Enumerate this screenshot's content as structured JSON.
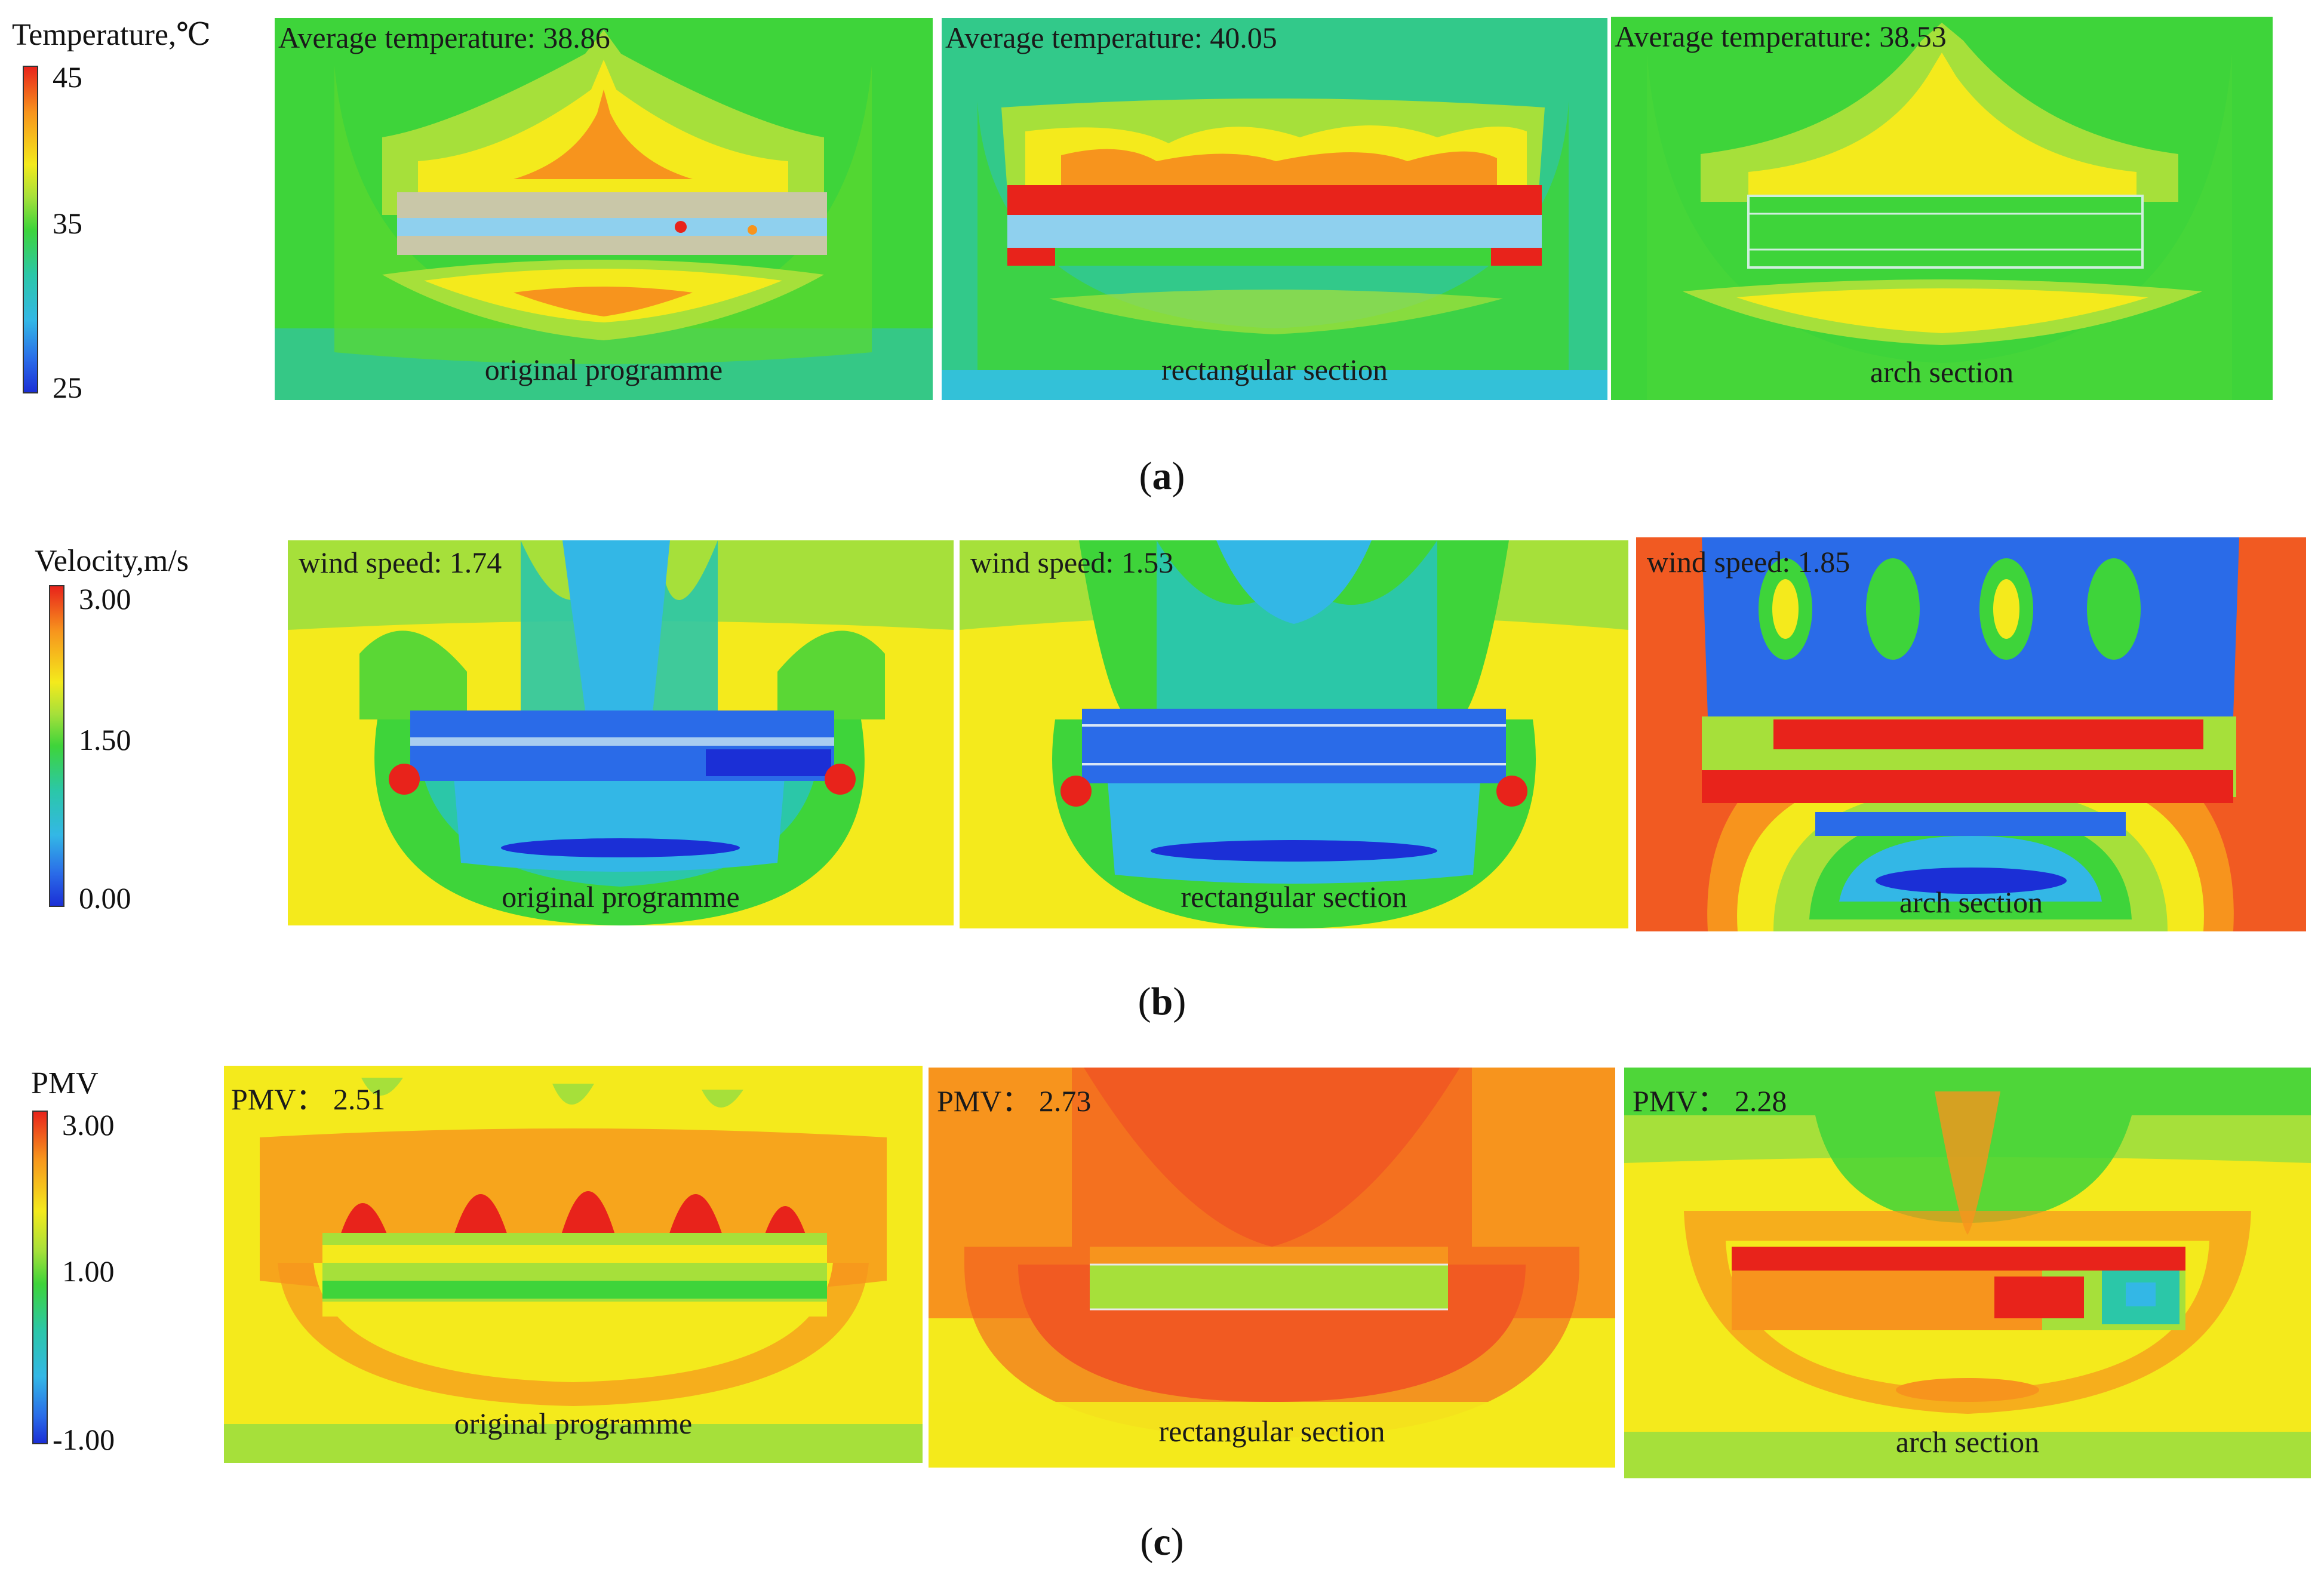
{
  "rows": [
    {
      "id": "a",
      "legend": {
        "title": "Temperature,℃",
        "ticks": [
          "45",
          "35",
          "25"
        ],
        "max": 45,
        "min": 25
      },
      "caption": "a",
      "panels": [
        {
          "metric_label": "Average temperature: 38.86",
          "name": "original programme",
          "value": 38.86
        },
        {
          "metric_label": "Average temperature: 40.05",
          "name": "rectangular section",
          "value": 40.05
        },
        {
          "metric_label": "Average temperature: 38.53",
          "name": "arch section",
          "value": 38.53
        }
      ]
    },
    {
      "id": "b",
      "legend": {
        "title": "Velocity,m/s",
        "ticks": [
          "3.00",
          "1.50",
          "0.00"
        ],
        "max": 3.0,
        "min": 0.0
      },
      "caption": "b",
      "panels": [
        {
          "metric_label": "wind speed: 1.74",
          "name": "original programme",
          "value": 1.74
        },
        {
          "metric_label": "wind speed: 1.53",
          "name": "rectangular section",
          "value": 1.53
        },
        {
          "metric_label": "wind speed: 1.85",
          "name": "arch section",
          "value": 1.85
        }
      ]
    },
    {
      "id": "c",
      "legend": {
        "title": "PMV",
        "ticks": [
          "3.00",
          "1.00",
          "-1.00"
        ],
        "max": 3.0,
        "min": -1.0
      },
      "caption": "c",
      "panels": [
        {
          "metric_label": "PMV： 2.51",
          "name": "original programme",
          "value": 2.51
        },
        {
          "metric_label": "PMV： 2.73",
          "name": "rectangular section",
          "value": 2.73
        },
        {
          "metric_label": "PMV： 2.28",
          "name": "arch section",
          "value": 2.28
        }
      ]
    }
  ],
  "colors": {
    "red": "#e8231b",
    "orange": "#f7941d",
    "yellow": "#f4ea1c",
    "lime": "#a6e03a",
    "green": "#3ed43a",
    "teal": "#2bc7a8",
    "cyan": "#33b7e6",
    "blue": "#2a6be8",
    "navy": "#1b2fd6"
  }
}
